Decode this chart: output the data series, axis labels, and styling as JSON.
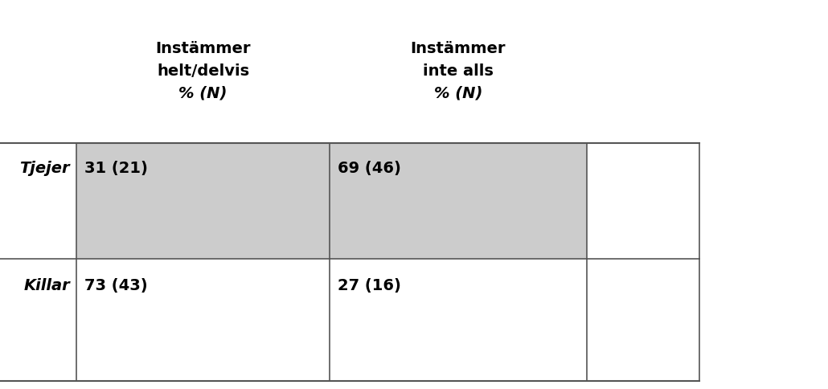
{
  "col_headers": [
    "Instämmer\nhelt/delvis\n% (N)",
    "Instämmer\ninte alls\n% (N)"
  ],
  "row_labels": [
    "Tjejer",
    "Killar"
  ],
  "cell_values": [
    [
      "31 (21)",
      "69 (46)"
    ],
    [
      "73 (43)",
      "27 (16)"
    ]
  ],
  "row_shading": [
    true,
    false
  ],
  "shading_color": "#cccccc",
  "bg_color": "#ffffff",
  "text_color": "#000000",
  "border_color": "#555555",
  "header_fontsize": 14,
  "cell_fontsize": 14,
  "row_label_fontsize": 14,
  "fig_width": 10.3,
  "fig_height": 4.84
}
